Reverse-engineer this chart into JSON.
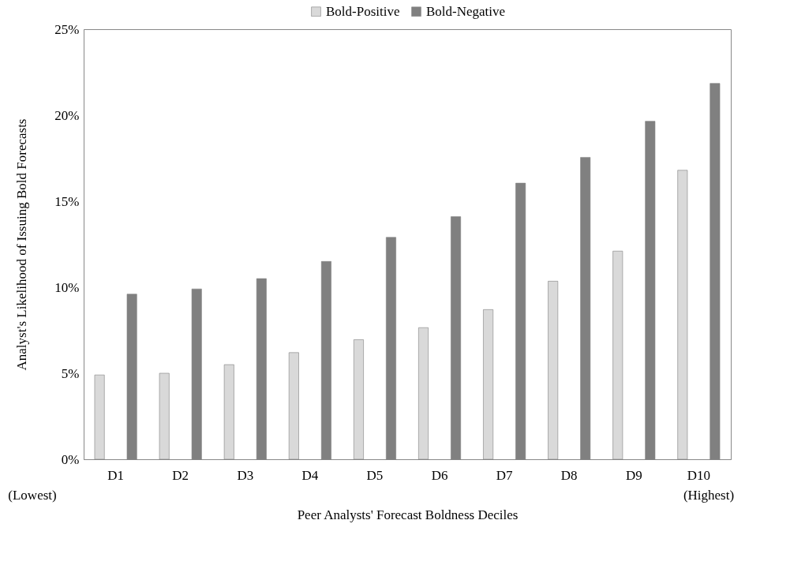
{
  "chart_data": {
    "type": "bar",
    "xlabel": "Peer Analysts' Forecast Boldness Deciles",
    "ylabel": "Analyst's Likelihood of Issuing Bold Forecasts",
    "categories": [
      "D1",
      "D2",
      "D3",
      "D4",
      "D5",
      "D6",
      "D7",
      "D8",
      "D9",
      "D10"
    ],
    "series": [
      {
        "name": "Bold-Positive",
        "color": "#d9d9d9",
        "values": [
          4.9,
          5.0,
          5.5,
          6.2,
          6.95,
          7.65,
          8.7,
          10.35,
          12.1,
          16.8
        ]
      },
      {
        "name": "Bold-Negative",
        "color": "#808080",
        "values": [
          9.6,
          9.9,
          10.5,
          11.5,
          12.9,
          14.1,
          16.05,
          17.55,
          19.65,
          21.85
        ]
      }
    ],
    "ylim": [
      0,
      25
    ],
    "yticks": [
      {
        "value": 0,
        "label": "0%"
      },
      {
        "value": 5,
        "label": "5%"
      },
      {
        "value": 10,
        "label": "10%"
      },
      {
        "value": 15,
        "label": "15%"
      },
      {
        "value": 20,
        "label": "20%"
      },
      {
        "value": 25,
        "label": "25%"
      }
    ],
    "annotations": [
      "(Lowest)",
      "(Highest)"
    ],
    "legend": "top",
    "grid": false
  }
}
